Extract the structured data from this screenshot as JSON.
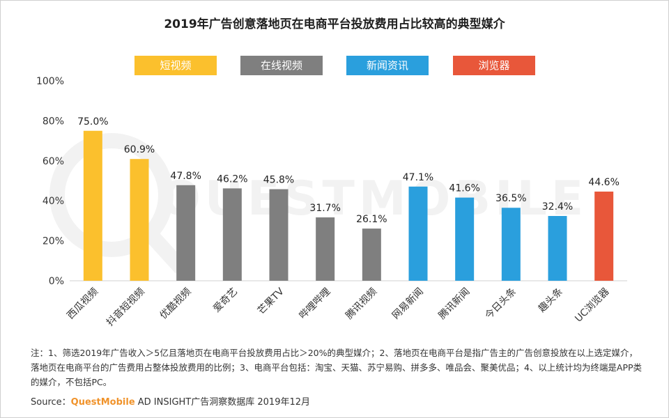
{
  "title": "2019年广告创意落地页在电商平台投放费用占比较高的典型媒介",
  "legend": [
    {
      "label": "短视频",
      "color": "#FBC02D"
    },
    {
      "label": "在线视频",
      "color": "#7F7F7F"
    },
    {
      "label": "新闻资讯",
      "color": "#2A9FDD"
    },
    {
      "label": "浏览器",
      "color": "#E8573A"
    }
  ],
  "chart_data": {
    "type": "bar",
    "categories": [
      "西瓜视频",
      "抖音短视频",
      "优酷视频",
      "爱奇艺",
      "芒果TV",
      "哔哩哔哩",
      "腾讯视频",
      "网易新闻",
      "腾讯新闻",
      "今日头条",
      "趣头条",
      "UC浏览器"
    ],
    "values": [
      75.0,
      60.9,
      47.8,
      46.2,
      45.8,
      31.7,
      26.1,
      47.1,
      41.6,
      36.5,
      32.4,
      44.6
    ],
    "value_labels": [
      "75.0%",
      "60.9%",
      "47.8%",
      "46.2%",
      "45.8%",
      "31.7%",
      "26.1%",
      "47.1%",
      "41.6%",
      "36.5%",
      "32.4%",
      "44.6%"
    ],
    "groups": [
      0,
      0,
      1,
      1,
      1,
      1,
      1,
      2,
      2,
      2,
      2,
      3
    ],
    "yticks": [
      "0%",
      "20%",
      "40%",
      "60%",
      "80%",
      "100%"
    ],
    "ylim": [
      0,
      100
    ],
    "grid": false,
    "legend_position": "top"
  },
  "note": "注：1、筛选2019年广告收入＞5亿且落地页在电商平台投放费用占比＞20%的典型媒介；2、落地页在电商平台是指广告主的广告创意投放在以上选定媒介，落地页在电商平台的广告费用占整体投放费用的比例；3、电商平台包括：淘宝、天猫、苏宁易购、拼多多、唯品会、聚美优品；4、以上统计均为终端是APP类的媒介，不包括PC。",
  "source": {
    "label": "Source：",
    "brand": "QuestMobile",
    "text": " AD INSIGHT广告洞察数据库 2019年12月"
  },
  "watermark": "QUESTMOBILE"
}
